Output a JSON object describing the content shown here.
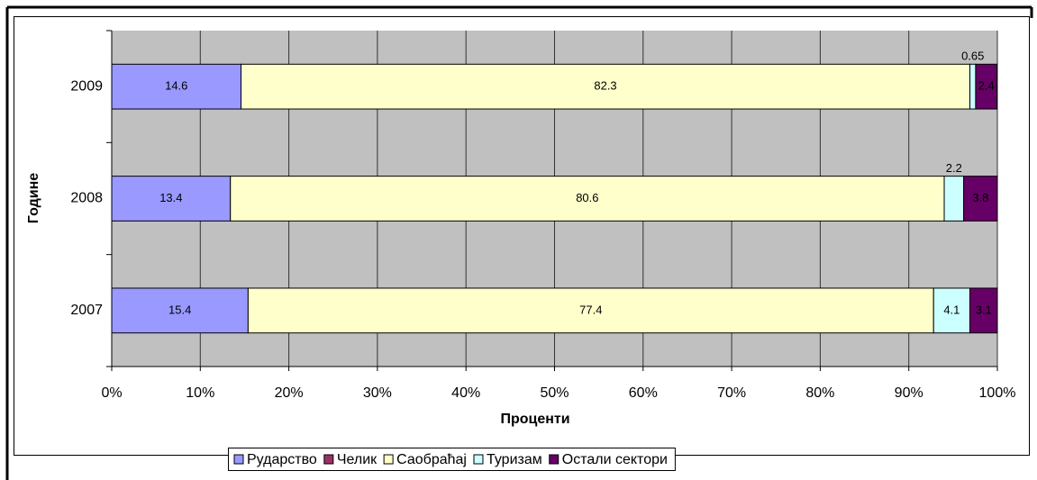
{
  "chart_data": {
    "type": "stacked-bar-horizontal",
    "categories": [
      "2007",
      "2008",
      "2009"
    ],
    "series": [
      {
        "name": "Рударство",
        "color": "#9999ff",
        "values": [
          15.4,
          13.4,
          14.6
        ]
      },
      {
        "name": "Челик",
        "color": "#993366",
        "values": [
          null,
          null,
          null
        ]
      },
      {
        "name": "Саобраћај",
        "color": "#ffffcc",
        "values": [
          77.4,
          80.6,
          82.3
        ]
      },
      {
        "name": "Туризам",
        "color": "#ccffff",
        "values": [
          4.1,
          2.2,
          0.65
        ]
      },
      {
        "name": "Остали сектори",
        "color": "#660066",
        "values": [
          3.1,
          3.8,
          2.4
        ]
      }
    ],
    "xlabel": "Проценти",
    "ylabel": "Године",
    "xlim": [
      0,
      100
    ],
    "xticks": [
      {
        "value": 0,
        "label": "0%"
      },
      {
        "value": 10,
        "label": "10%"
      },
      {
        "value": 20,
        "label": "20%"
      },
      {
        "value": 30,
        "label": "30%"
      },
      {
        "value": 40,
        "label": "40%"
      },
      {
        "value": 50,
        "label": "50%"
      },
      {
        "value": 60,
        "label": "60%"
      },
      {
        "value": 70,
        "label": "70%"
      },
      {
        "value": 80,
        "label": "80%"
      },
      {
        "value": 90,
        "label": "90%"
      },
      {
        "value": 100,
        "label": "100%"
      }
    ],
    "grid": true,
    "legend": "bottom"
  }
}
